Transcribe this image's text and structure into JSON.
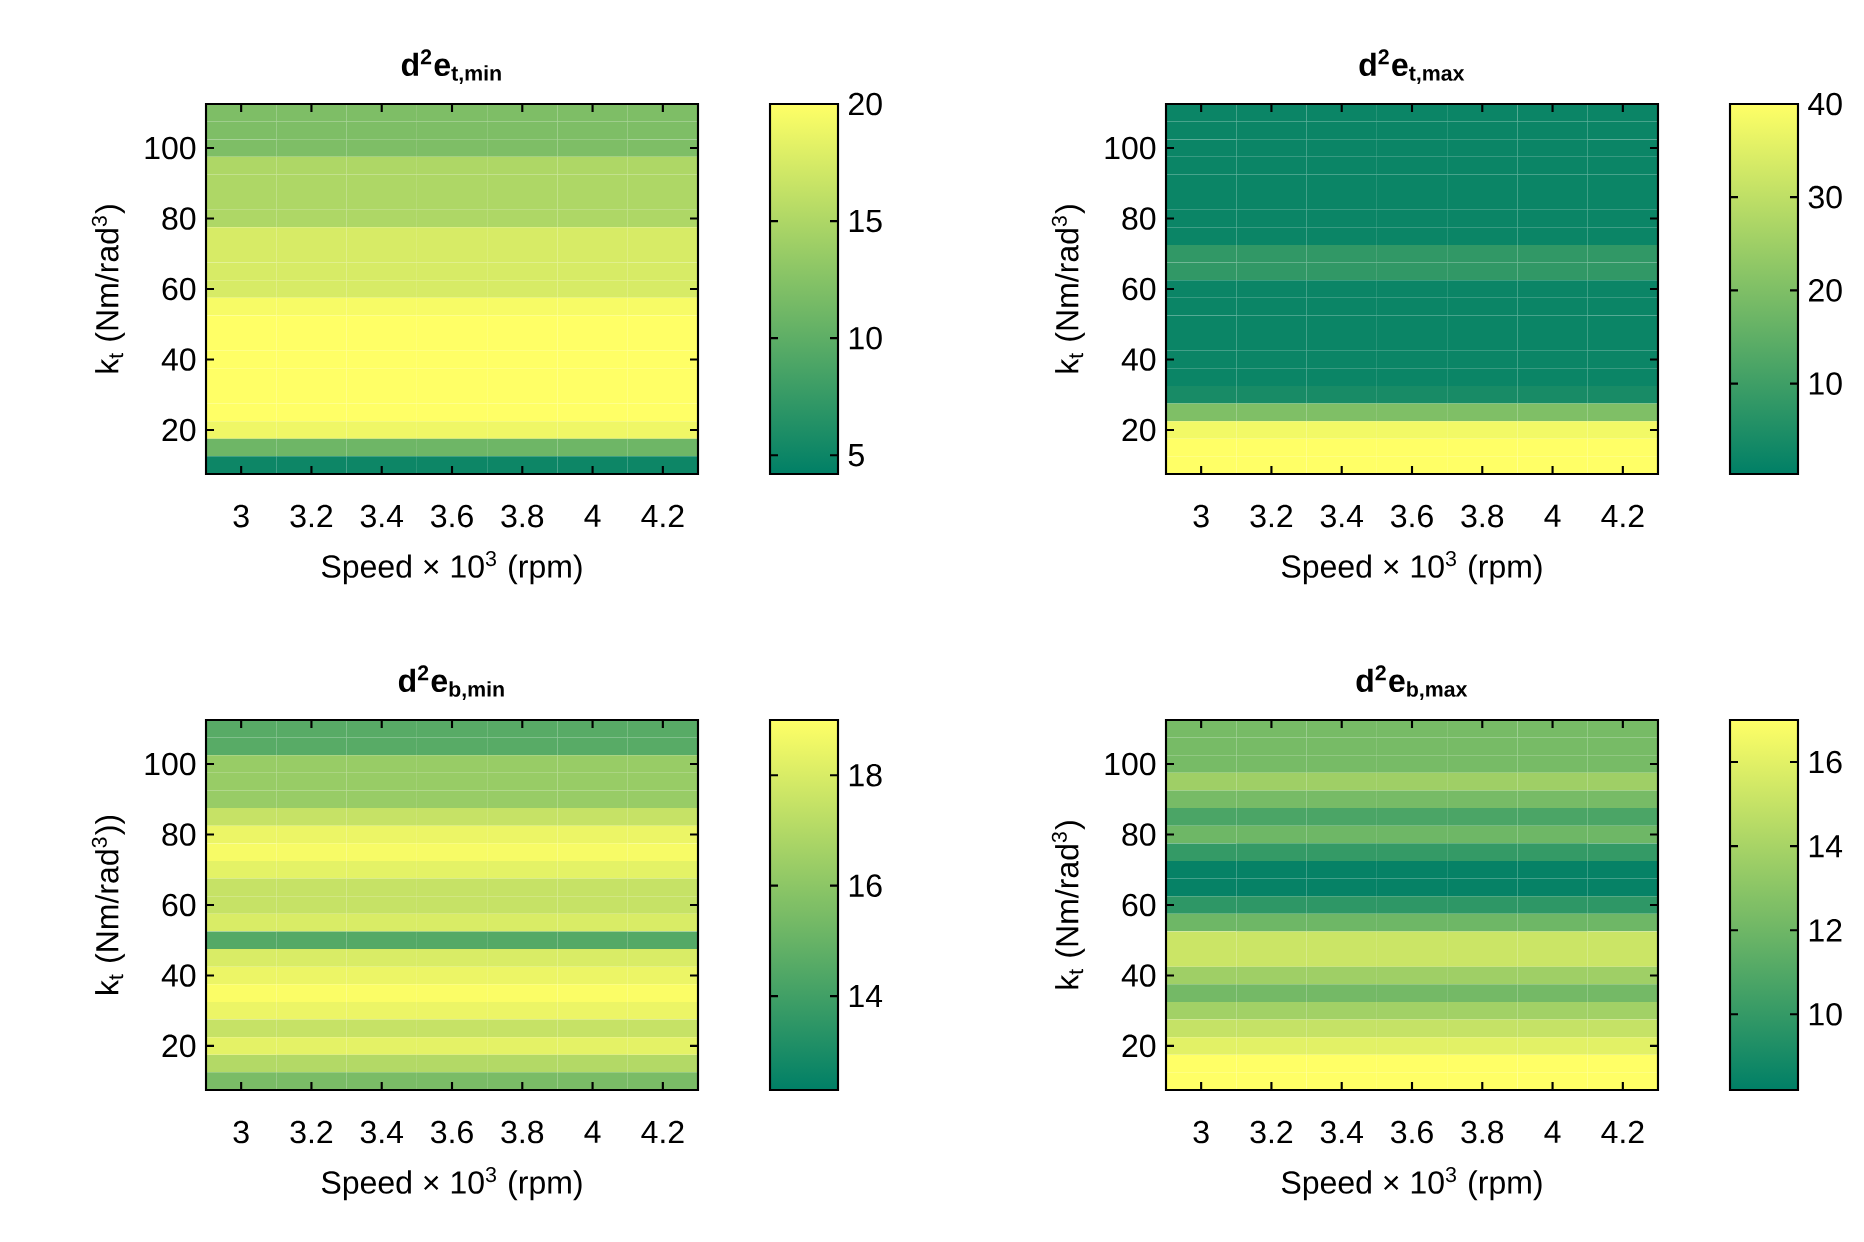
{
  "chart_data": [
    {
      "type": "heatmap",
      "title": "d$^{2}$e$_{t,min}$",
      "xlabel": "Speed × 10$^{3}$ (rpm)",
      "ylabel": "k$_{t}$ (Nm/rad$^{3}$)",
      "categories": [
        "3",
        "3.2",
        "3.4",
        "3.6",
        "3.8",
        "4",
        "4.2"
      ],
      "y_categories": [
        null,
        null,
        "100",
        null,
        null,
        null,
        "80",
        null,
        null,
        null,
        "60",
        null,
        null,
        null,
        "40",
        null,
        null,
        null,
        "20",
        null,
        null
      ],
      "clim": [
        4.2,
        20
      ],
      "cticks": [
        5,
        10,
        15,
        20
      ],
      "cells": [
        [
          12,
          12,
          12,
          12,
          12,
          12,
          12
        ],
        [
          12,
          12,
          12,
          12,
          12,
          12,
          12
        ],
        [
          12,
          12,
          12,
          12,
          12,
          12,
          12
        ],
        [
          15,
          15,
          15,
          15,
          15,
          15,
          15
        ],
        [
          15,
          15,
          15,
          15,
          15,
          15,
          15
        ],
        [
          15,
          15,
          15,
          15,
          15,
          15,
          15
        ],
        [
          15,
          15,
          15,
          15,
          15,
          15,
          15
        ],
        [
          17.5,
          17.5,
          17.5,
          17.5,
          17.5,
          17.5,
          17.5
        ],
        [
          17.5,
          17.5,
          17.5,
          17.5,
          17.5,
          17.5,
          17.5
        ],
        [
          17.5,
          17.5,
          17.5,
          17.5,
          17.5,
          17.5,
          17.5
        ],
        [
          17.5,
          17.5,
          17.5,
          17.5,
          17.5,
          17.5,
          17.5
        ],
        [
          19.5,
          19.5,
          19.5,
          19.5,
          19.5,
          19.5,
          19.5
        ],
        [
          20,
          20,
          20,
          20,
          20,
          20,
          20
        ],
        [
          20,
          20,
          20,
          20,
          20,
          20,
          20
        ],
        [
          20,
          20,
          20,
          20,
          20,
          20,
          20
        ],
        [
          20,
          20,
          20,
          20,
          20,
          20,
          20
        ],
        [
          20,
          20,
          20,
          20,
          20,
          20,
          20
        ],
        [
          20,
          20,
          20,
          20,
          20,
          20,
          20
        ],
        [
          19,
          19,
          19,
          19,
          19,
          19,
          19
        ],
        [
          11,
          11,
          11,
          11,
          11,
          11,
          11
        ],
        [
          5,
          5,
          5,
          5,
          5,
          5,
          5
        ]
      ]
    },
    {
      "type": "heatmap",
      "title": "d$^{2}$e$_{t,max}$",
      "xlabel": "Speed × 10$^{3}$ (rpm)",
      "ylabel": "k$_{t}$ (Nm/rad$^{3}$)",
      "categories": [
        "3",
        "3.2",
        "3.4",
        "3.6",
        "3.8",
        "4",
        "4.2"
      ],
      "y_categories": [
        null,
        null,
        "100",
        null,
        null,
        null,
        "80",
        null,
        null,
        null,
        "60",
        null,
        null,
        null,
        "40",
        null,
        null,
        null,
        "20",
        null,
        null
      ],
      "clim": [
        0.3,
        40
      ],
      "cticks": [
        10,
        20,
        30,
        40
      ],
      "cells": [
        [
          2,
          2,
          2,
          2,
          2,
          2,
          2
        ],
        [
          2,
          2,
          2,
          2,
          2,
          2,
          2
        ],
        [
          2,
          2,
          2,
          2,
          2,
          2,
          2
        ],
        [
          2,
          2,
          2,
          2,
          2,
          2,
          2
        ],
        [
          2,
          2,
          2,
          2,
          2,
          2,
          2
        ],
        [
          2,
          2,
          2,
          2,
          2,
          2,
          2
        ],
        [
          2,
          2,
          2,
          2,
          2,
          2,
          2
        ],
        [
          2,
          2,
          2,
          2,
          2,
          2,
          2
        ],
        [
          8,
          8,
          8,
          8,
          8,
          8,
          8
        ],
        [
          8,
          8,
          8,
          8,
          8,
          8,
          8
        ],
        [
          2,
          2,
          2,
          2,
          2,
          2,
          2
        ],
        [
          2,
          2,
          2,
          2,
          2,
          2,
          2
        ],
        [
          2,
          2,
          2,
          2,
          2,
          2,
          2
        ],
        [
          2,
          2,
          2,
          2,
          2,
          2,
          2
        ],
        [
          2,
          2,
          2,
          2,
          2,
          2,
          2
        ],
        [
          2,
          2,
          2,
          2,
          2,
          2,
          2
        ],
        [
          4,
          4,
          4,
          4,
          4,
          4,
          4
        ],
        [
          20,
          20,
          20,
          20,
          20,
          20,
          20
        ],
        [
          38,
          38,
          38,
          38,
          38,
          38,
          38
        ],
        [
          40,
          40,
          40,
          40,
          40,
          40,
          40
        ],
        [
          40,
          40,
          40,
          40,
          40,
          40,
          40
        ]
      ]
    },
    {
      "type": "heatmap",
      "title": "d$^{2}$e$_{b,min}$",
      "xlabel": "Speed × 10$^{3}$ (rpm)",
      "ylabel": "k$_{t}$ (Nm/rad$^{3}$))",
      "categories": [
        "3",
        "3.2",
        "3.4",
        "3.6",
        "3.8",
        "4",
        "4.2"
      ],
      "y_categories": [
        null,
        null,
        "100",
        null,
        null,
        null,
        "80",
        null,
        null,
        null,
        "60",
        null,
        null,
        null,
        "40",
        null,
        null,
        null,
        "20",
        null,
        null
      ],
      "clim": [
        12.3,
        19
      ],
      "cticks": [
        14,
        16,
        18
      ],
      "cells": [
        [
          14.6,
          14.6,
          14.6,
          14.6,
          14.6,
          14.6,
          14.6
        ],
        [
          14.6,
          14.6,
          14.6,
          14.6,
          14.6,
          14.6,
          14.6
        ],
        [
          16.3,
          16.3,
          16.3,
          16.3,
          16.3,
          16.3,
          16.3
        ],
        [
          16.3,
          16.3,
          16.3,
          16.3,
          16.3,
          16.3,
          16.3
        ],
        [
          16.3,
          16.3,
          16.3,
          16.3,
          16.3,
          16.3,
          16.3
        ],
        [
          17.5,
          17.5,
          17.5,
          17.5,
          17.5,
          17.5,
          17.5
        ],
        [
          18.5,
          18.5,
          18.5,
          18.5,
          18.5,
          18.5,
          18.5
        ],
        [
          18.8,
          18.8,
          18.8,
          18.8,
          18.8,
          18.8,
          18.8
        ],
        [
          18.3,
          18.3,
          18.3,
          18.3,
          18.3,
          18.3,
          18.3
        ],
        [
          17.5,
          17.5,
          17.5,
          17.5,
          17.5,
          17.5,
          17.5
        ],
        [
          17.5,
          17.5,
          17.5,
          17.5,
          17.5,
          17.5,
          17.5
        ],
        [
          18,
          18,
          18,
          18,
          18,
          18,
          18
        ],
        [
          14.5,
          14.5,
          14.5,
          14.5,
          14.5,
          14.5,
          14.5
        ],
        [
          18,
          18,
          18,
          18,
          18,
          18,
          18
        ],
        [
          18.5,
          18.5,
          18.5,
          18.5,
          18.5,
          18.5,
          18.5
        ],
        [
          18.9,
          18.9,
          18.9,
          18.9,
          18.9,
          18.9,
          18.9
        ],
        [
          18.5,
          18.5,
          18.5,
          18.5,
          18.5,
          18.5,
          18.5
        ],
        [
          17.5,
          17.5,
          17.5,
          17.5,
          17.5,
          17.5,
          17.5
        ],
        [
          18.3,
          18.3,
          18.3,
          18.3,
          18.3,
          18.3,
          18.3
        ],
        [
          17,
          17,
          17,
          17,
          17,
          17,
          17
        ],
        [
          15.5,
          15.5,
          15.5,
          15.5,
          15.5,
          15.5,
          15.5
        ]
      ]
    },
    {
      "type": "heatmap",
      "title": "d$^{2}$e$_{b,max}$",
      "xlabel": "Speed × 10$^{3}$ (rpm)",
      "ylabel": "k$_{t}$ (Nm/rad$^{3}$)",
      "categories": [
        "3",
        "3.2",
        "3.4",
        "3.6",
        "3.8",
        "4",
        "4.2"
      ],
      "y_categories": [
        null,
        null,
        "100",
        null,
        null,
        null,
        "80",
        null,
        null,
        null,
        "60",
        null,
        null,
        null,
        "40",
        null,
        null,
        null,
        "20",
        null,
        null
      ],
      "clim": [
        8.2,
        17
      ],
      "cticks": [
        10,
        12,
        14,
        16
      ],
      "cells": [
        [
          12.3,
          12.3,
          12.3,
          12.3,
          12.3,
          12.3,
          12.3
        ],
        [
          12.3,
          12.3,
          12.3,
          12.3,
          12.3,
          12.3,
          12.3
        ],
        [
          12.3,
          12.3,
          12.3,
          12.3,
          12.3,
          12.3,
          12.3
        ],
        [
          13.7,
          13.7,
          13.7,
          13.7,
          13.7,
          13.7,
          13.7
        ],
        [
          12.3,
          12.3,
          12.3,
          12.3,
          12.3,
          12.3,
          12.3
        ],
        [
          10.8,
          10.8,
          10.8,
          10.8,
          10.8,
          10.8,
          10.8
        ],
        [
          12,
          12,
          12,
          12,
          12,
          12,
          12
        ],
        [
          10,
          10,
          10,
          10,
          10,
          10,
          10
        ],
        [
          8.4,
          8.4,
          8.4,
          8.4,
          8.4,
          8.4,
          8.4
        ],
        [
          8.4,
          8.4,
          8.4,
          8.4,
          8.4,
          8.4,
          8.4
        ],
        [
          9.8,
          9.8,
          9.8,
          9.8,
          9.8,
          9.8,
          9.8
        ],
        [
          12,
          12,
          12,
          12,
          12,
          12,
          12
        ],
        [
          15.2,
          15.2,
          15.2,
          15.2,
          15.2,
          15.2,
          15.2
        ],
        [
          15.2,
          15.2,
          15.2,
          15.2,
          15.2,
          15.2,
          15.2
        ],
        [
          13.7,
          13.7,
          13.7,
          13.7,
          13.7,
          13.7,
          13.7
        ],
        [
          12.2,
          12.2,
          12.2,
          12.2,
          12.2,
          12.2,
          12.2
        ],
        [
          13.8,
          13.8,
          13.8,
          13.8,
          13.8,
          13.8,
          13.8
        ],
        [
          15,
          15,
          15,
          15,
          15,
          15,
          15
        ],
        [
          16,
          16,
          16,
          16,
          16,
          16,
          16
        ],
        [
          17,
          17,
          17,
          17,
          17,
          17,
          17
        ],
        [
          17,
          17,
          17,
          17,
          17,
          17,
          17
        ]
      ]
    }
  ]
}
